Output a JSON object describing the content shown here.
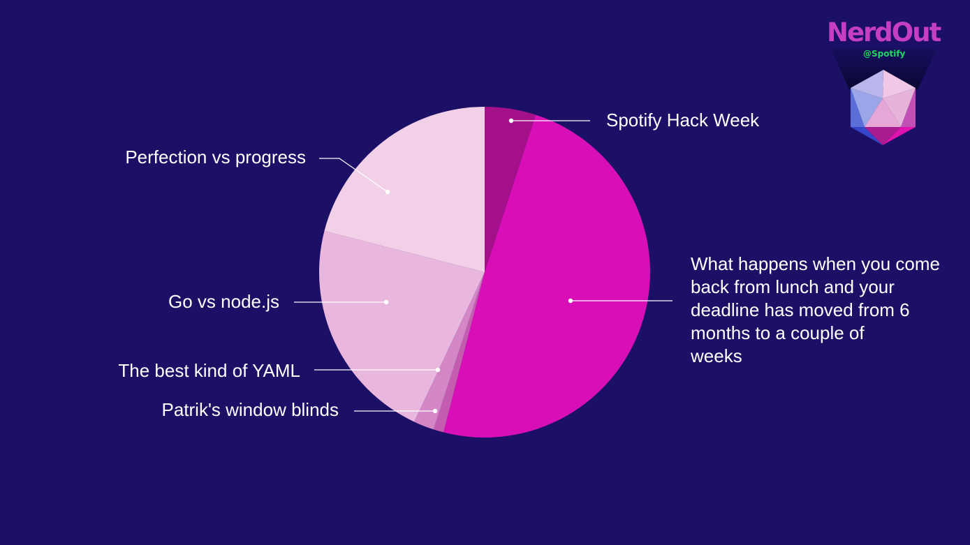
{
  "colors": {
    "background": "#1b0f66",
    "label": "#ffffff",
    "leader": "#ffffff"
  },
  "chart_data": {
    "type": "pie",
    "title": "",
    "start_angle_deg": 0,
    "direction": "clockwise",
    "slices": [
      {
        "label": "Spotify Hack Week",
        "value": 5,
        "color": "#a3108a"
      },
      {
        "label": "What happens when you come back from lunch and your deadline has moved from 6 months to a couple of weeks",
        "value": 49,
        "color": "#d80fb6"
      },
      {
        "label": "Patrik's window blinds",
        "value": 1,
        "color": "#c45db0"
      },
      {
        "label": "The best kind of YAML",
        "value": 2,
        "color": "#d387c6"
      },
      {
        "label": "Go vs node.js",
        "value": 22,
        "color": "#e9b7dd"
      },
      {
        "label": "Perfection vs progress",
        "value": 21,
        "color": "#f1d0e8"
      }
    ]
  },
  "logo": {
    "wordmark": "NerdOut",
    "subline": "@Spotify",
    "icon": "icosahedron-gem-icon"
  }
}
